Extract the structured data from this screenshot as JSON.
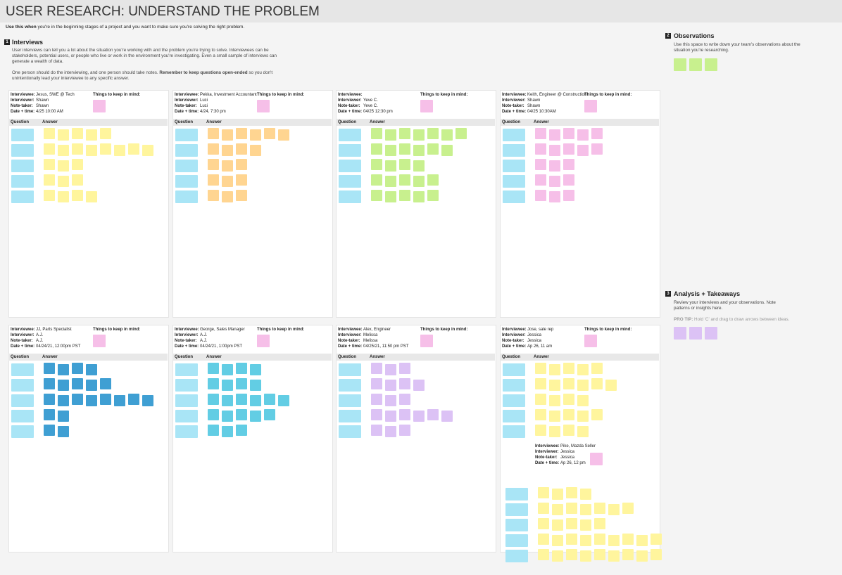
{
  "header": {
    "title": "USER RESEARCH: UNDERSTAND THE PROBLEM",
    "subtitle_bold": "Use this when",
    "subtitle": " you're in the beginning stages of a project and you want to make sure you're solving the right problem."
  },
  "interviews": {
    "number": "1",
    "title": "Interviews",
    "paragraph1": "User interviews can tell you a lot about the situation you're working with and the problem you're trying to solve. Interviewees can be stakeholders, potential users, or people who live or work in the environment you're investigating. Even a small sample of interviews can generate a wealth of data.",
    "paragraph2_start": "One person should do the interviewing, and one person should take notes. ",
    "paragraph2_bold": "Remember to keep questions open-ended",
    "paragraph2_end": " so you don't unintentionally lead your interviewee to any specific answer."
  },
  "observations": {
    "number": "2",
    "title": "Observations",
    "text": "Use this space to write down your team's observations about the situation you're researching."
  },
  "analysis": {
    "number": "3",
    "title": "Analysis + Takeaways",
    "text": "Review your interviews and your observations. Note patterns or insights here.",
    "pro_tip_label": "PRO TIP:",
    "pro_tip": "Hold 'C' and drag to draw arrows between ideas."
  },
  "labels": {
    "interviewee": "Interviewee:",
    "interviewer": "Interviewer:",
    "note_taker": "Note-taker:",
    "date_time": "Date + time:",
    "keep_in_mind": "Things to keep in mind:",
    "question": "Question",
    "answer": "Answer"
  },
  "panels": [
    {
      "interviewee": "Jesus, SWE @ Tech",
      "interviewer": "Shawn",
      "note_taker": "Shawn",
      "date_time": "4/25 10:00 AM"
    },
    {
      "interviewee": "Pekka, Investment Accountant",
      "interviewer": "Luci",
      "note_taker": "Luci",
      "date_time": "4/24, 7:30 pm"
    },
    {
      "interviewer": "Yeve C.",
      "note_taker": "Yeve C.",
      "date_time": "04/25 12:30 pm"
    },
    {
      "interviewee": "Keith, Engineer @ Construction",
      "interviewer": "Shawn",
      "note_taker": "Shawn",
      "date_time": "04/25 10:30AM"
    },
    {
      "interviewee": "JJ, Parts Specialist",
      "interviewer": "A.J.",
      "note_taker": "A.J.",
      "date_time": "04/24/21, 12:00pm PST"
    },
    {
      "interviewee": "George, Sales Manager",
      "interviewer": "A.J.",
      "note_taker": "A.J.",
      "date_time": "04/24/21, 1:00pm PST"
    },
    {
      "interviewee": "Alex, Engineer",
      "interviewer": "Melissa",
      "note_taker": "Melissa",
      "date_time": "04/25/21, 11:50 pm PST"
    },
    {
      "interviewee": "Jose, sale rep",
      "interviewer": "Jessica",
      "note_taker": "Jessica",
      "date_time": "Ap 26, 11 am",
      "second": [
        "Pike, Mazda Seller",
        "Jessica",
        "Jessica",
        "Ap 26, 12 pm"
      ]
    }
  ]
}
